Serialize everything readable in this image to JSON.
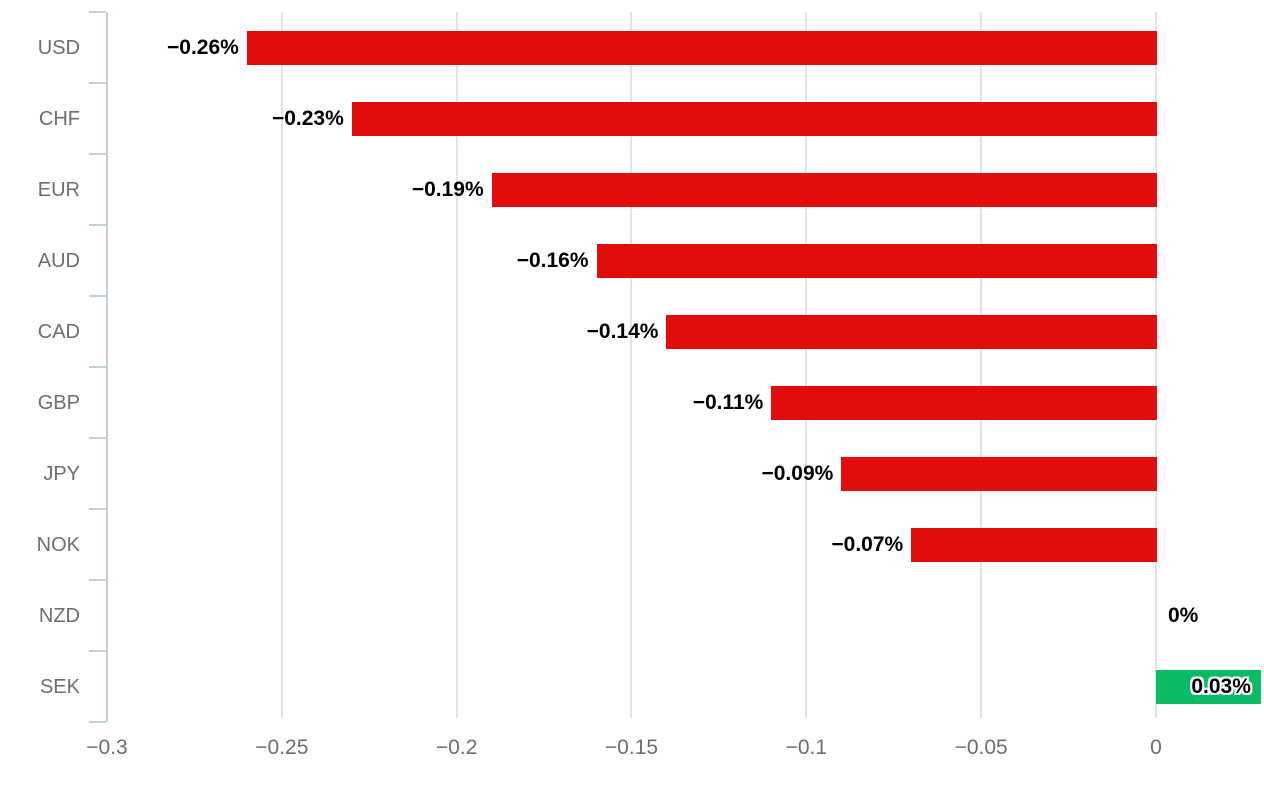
{
  "chart_data": {
    "type": "bar",
    "orientation": "horizontal",
    "title": "",
    "xlabel": "",
    "ylabel": "",
    "categories": [
      "USD",
      "CHF",
      "EUR",
      "AUD",
      "CAD",
      "GBP",
      "JPY",
      "NOK",
      "NZD",
      "SEK"
    ],
    "values": [
      -0.26,
      -0.23,
      -0.19,
      -0.16,
      -0.14,
      -0.11,
      -0.09,
      -0.07,
      0,
      0.03
    ],
    "value_labels": [
      "−0.26%",
      "−0.23%",
      "−0.19%",
      "−0.16%",
      "−0.14%",
      "−0.11%",
      "−0.09%",
      "−0.07%",
      "0%",
      "0.03%"
    ],
    "xlim": [
      -0.3,
      0.03
    ],
    "x_ticks": [
      -0.3,
      -0.25,
      -0.2,
      -0.15,
      -0.1,
      -0.05,
      0
    ],
    "x_tick_labels": [
      "−0.3",
      "−0.25",
      "−0.2",
      "−0.15",
      "−0.1",
      "−0.05",
      "0"
    ],
    "grid": "vertical-gridlines-on",
    "legend": "none",
    "colors": {
      "negative_bar": "#e10c0c",
      "positive_bar": "#0aba64",
      "grid_line": "#e4e4e4",
      "axis_line": "#c7d0de",
      "category_label": "#6e6e6e",
      "tick_label": "#6e6e6e",
      "value_label": "#000000"
    }
  }
}
